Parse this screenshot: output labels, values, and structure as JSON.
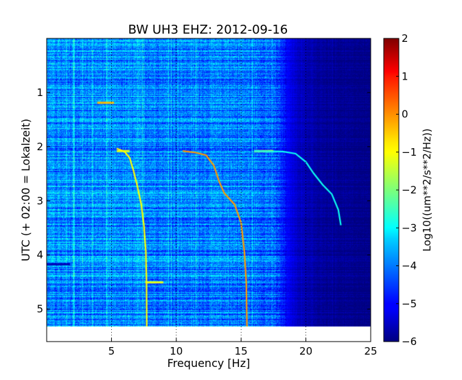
{
  "chart_data": {
    "type": "heatmap",
    "title": "BW UH3 EHZ: 2012-09-16",
    "xlabel": "Frequency [Hz]",
    "ylabel": "UTC (+ 02:00 = Lokalzeit)",
    "xlim": [
      0,
      25
    ],
    "ylim": [
      5.6,
      0
    ],
    "data_y_extent": [
      0,
      5.55
    ],
    "xticks": [
      5,
      10,
      15,
      20,
      25
    ],
    "xtick_labels": [
      "5",
      "10",
      "15",
      "20",
      "25"
    ],
    "yticks": [
      1,
      2,
      3,
      4,
      5
    ],
    "ytick_labels": [
      "1",
      "2",
      "3",
      "4",
      "5"
    ],
    "vertical_grid_lines_x": [
      5,
      10,
      15,
      20
    ],
    "colorbar": {
      "label": "Log10((um**2/s**2/Hz))",
      "min": -6,
      "max": 2,
      "ticks": [
        2,
        1,
        0,
        -1,
        -2,
        -3,
        -4,
        -5,
        -6
      ],
      "tick_labels": [
        "2",
        "1",
        "0",
        "−1",
        "−2",
        "−3",
        "−4",
        "−5",
        "−6"
      ],
      "colormap": "jet"
    },
    "spectral_tracks": [
      {
        "level": -1.0,
        "points": [
          [
            5.4,
            2.12
          ],
          [
            6.0,
            2.18
          ],
          [
            6.4,
            2.3
          ],
          [
            6.7,
            2.55
          ],
          [
            7.0,
            2.85
          ],
          [
            7.3,
            3.2
          ],
          [
            7.5,
            3.6
          ],
          [
            7.65,
            4.1
          ],
          [
            7.7,
            4.7
          ],
          [
            7.72,
            5.55
          ]
        ]
      },
      {
        "level": -0.2,
        "points": [
          [
            10.5,
            2.17
          ],
          [
            11.5,
            2.2
          ],
          [
            12.3,
            2.25
          ],
          [
            12.9,
            2.45
          ],
          [
            13.3,
            2.75
          ],
          [
            13.7,
            2.98
          ],
          [
            14.5,
            3.2
          ],
          [
            15.0,
            3.55
          ],
          [
            15.25,
            4.1
          ],
          [
            15.4,
            4.7
          ],
          [
            15.45,
            5.55
          ]
        ]
      },
      {
        "level": -2.9,
        "points": [
          [
            16.0,
            2.17
          ],
          [
            18.2,
            2.18
          ],
          [
            19.2,
            2.22
          ],
          [
            20.0,
            2.38
          ],
          [
            20.6,
            2.6
          ],
          [
            21.3,
            2.82
          ],
          [
            22.0,
            3.0
          ],
          [
            22.5,
            3.3
          ],
          [
            22.7,
            3.6
          ]
        ]
      }
    ],
    "horizontal_events": [
      {
        "y": 1.24,
        "x": [
          3.9,
          5.2
        ],
        "level": -0.5
      },
      {
        "y": 2.17,
        "x": [
          5.4,
          6.4
        ],
        "level": -1.2
      },
      {
        "y": 2.17,
        "x": [
          16.0,
          17.5
        ],
        "level": -1.0
      },
      {
        "y": 4.7,
        "x": [
          7.6,
          9.0
        ],
        "level": -1.2
      },
      {
        "y": 4.35,
        "x": [
          0,
          1.8
        ],
        "level": -5.6
      }
    ],
    "background_profile": [
      {
        "f": 0.0,
        "level": -3.8
      },
      {
        "f": 1.0,
        "level": -4.0
      },
      {
        "f": 5.0,
        "level": -3.9
      },
      {
        "f": 10.0,
        "level": -4.0
      },
      {
        "f": 15.0,
        "level": -4.0
      },
      {
        "f": 17.5,
        "level": -4.2
      },
      {
        "f": 18.5,
        "level": -5.0
      },
      {
        "f": 19.5,
        "level": -5.5
      },
      {
        "f": 21.0,
        "level": -5.8
      },
      {
        "f": 25.0,
        "level": -5.95
      }
    ]
  }
}
